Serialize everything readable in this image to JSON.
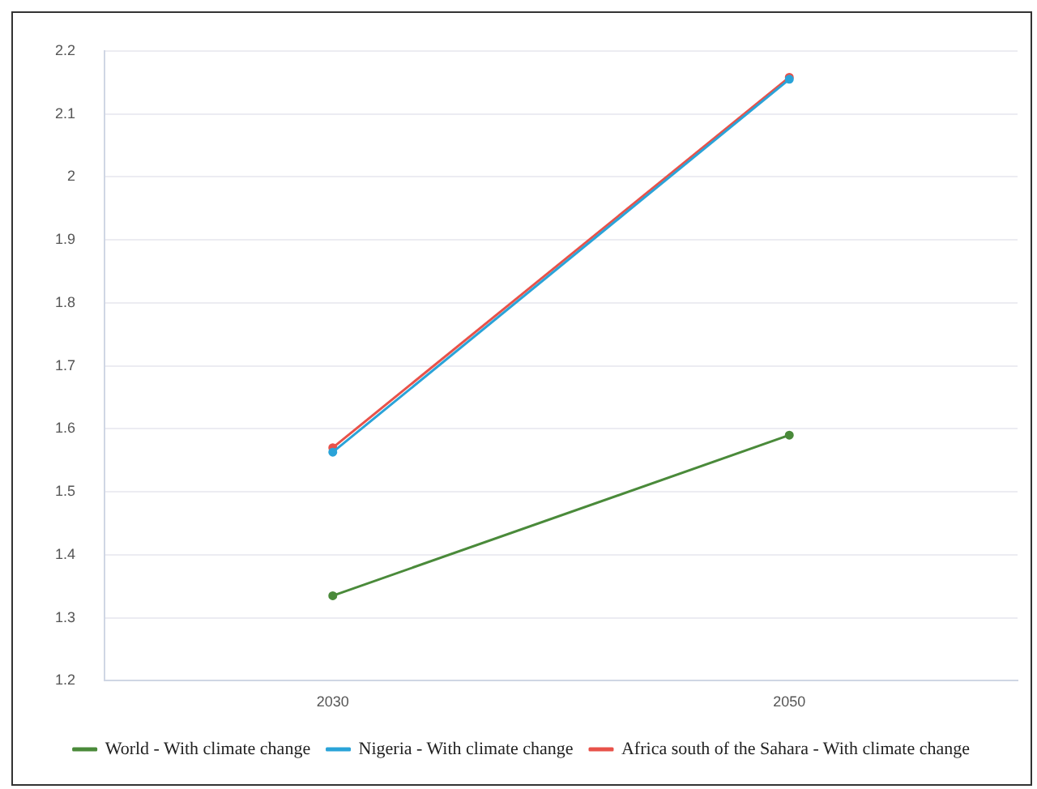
{
  "chart_data": {
    "type": "line",
    "categories": [
      "2030",
      "2050"
    ],
    "series": [
      {
        "name": "World - With climate change",
        "color": "#4a8a3a",
        "values": [
          1.335,
          1.59
        ]
      },
      {
        "name": "Nigeria - With climate change",
        "color": "#2aa3d8",
        "values": [
          1.563,
          2.155
        ]
      },
      {
        "name": "Africa south of the Sahara - With climate change",
        "color": "#e8524a",
        "values": [
          1.57,
          2.158
        ]
      }
    ],
    "ylim": [
      1.2,
      2.2
    ],
    "yticks": [
      1.2,
      1.3,
      1.4,
      1.5,
      1.6,
      1.7,
      1.8,
      1.9,
      2,
      2.1,
      2.2
    ],
    "grid": "y",
    "legend": "bottom",
    "marker": "circle",
    "line_style": "solid"
  }
}
